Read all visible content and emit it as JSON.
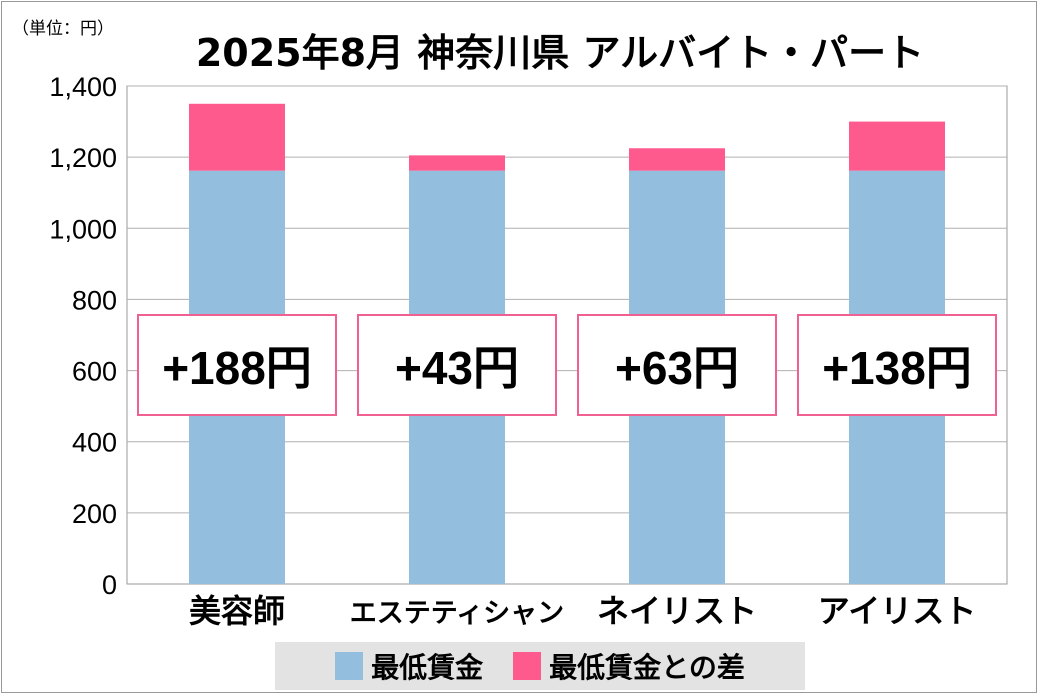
{
  "chart_data": {
    "type": "bar",
    "stacked": true,
    "title": "2025年8月 神奈川県 アルバイト・パート",
    "unit_label": "（単位：円）",
    "categories": [
      "美容師",
      "エステティシャン",
      "ネイリスト",
      "アイリスト"
    ],
    "series": [
      {
        "name": "最低賃金",
        "values": [
          1162,
          1162,
          1162,
          1162
        ],
        "color": "#93bede"
      },
      {
        "name": "最低賃金との差",
        "values": [
          188,
          43,
          63,
          138
        ],
        "color": "#ff5a8e"
      }
    ],
    "data_labels": [
      "+188円",
      "+43円",
      "+63円",
      "+138円"
    ],
    "ylim": [
      0,
      1400
    ],
    "yticks": [
      "0",
      "200",
      "400",
      "600",
      "800",
      "1,000",
      "1,200",
      "1,400"
    ],
    "grid": true,
    "legend": "bottom"
  }
}
